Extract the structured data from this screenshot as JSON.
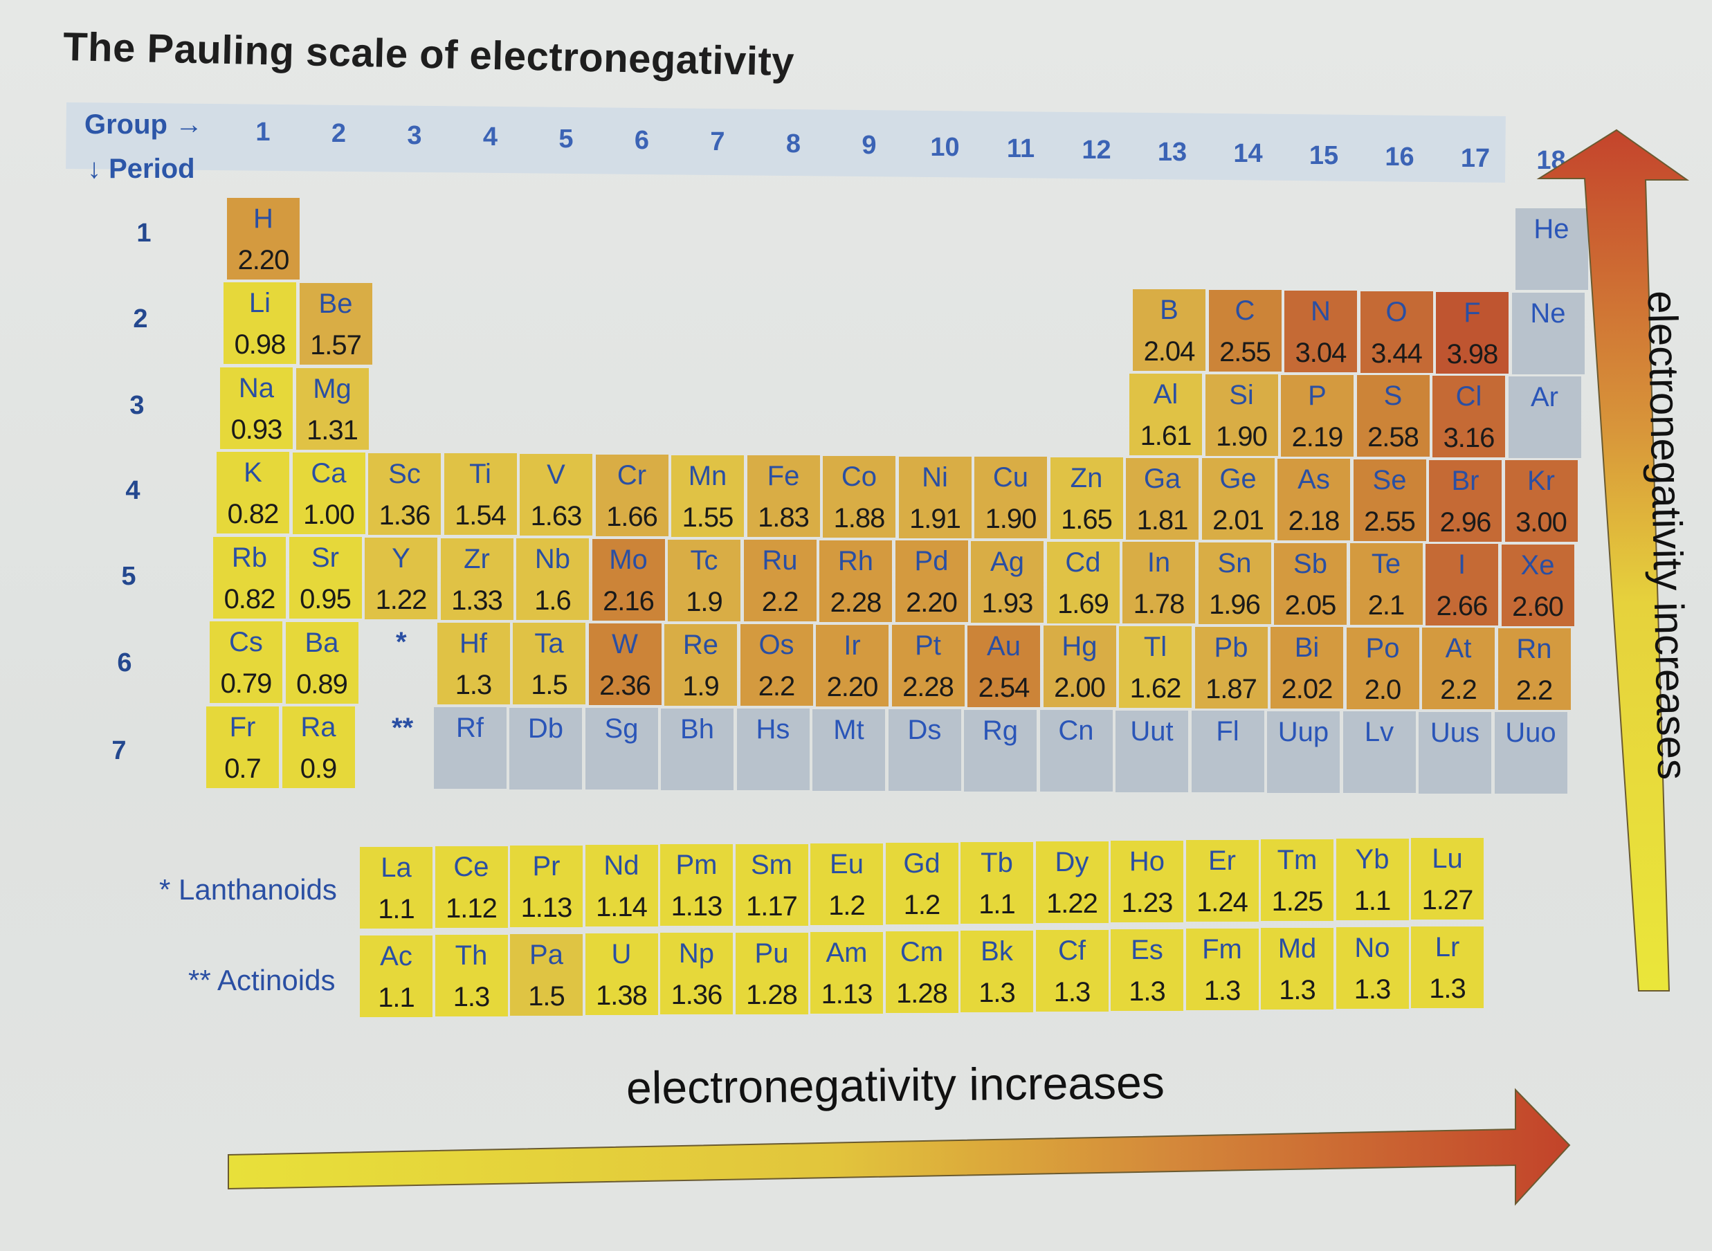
{
  "title": "The Pauling scale of electronegativity",
  "header": {
    "group_label": "Group →",
    "period_label": "↓ Period",
    "groups": [
      "1",
      "2",
      "3",
      "4",
      "5",
      "6",
      "7",
      "8",
      "9",
      "10",
      "11",
      "12",
      "13",
      "14",
      "15",
      "16",
      "17",
      "18"
    ],
    "periods": [
      "1",
      "2",
      "3",
      "4",
      "5",
      "6",
      "7"
    ]
  },
  "markers": {
    "lanthanoid": "*",
    "actinoid": "**"
  },
  "series_labels": {
    "lanthanoids": "* Lanthanoids",
    "actinoids": "** Actinoids"
  },
  "arrows": {
    "horizontal_label": "electronegativity increases",
    "vertical_label": "electronegativity increases"
  },
  "colors": {
    "yellow": "#e6d83a",
    "light_gold": "#e0c245",
    "gold": "#d9ad45",
    "amber": "#d49a3f",
    "orange": "#cc8438",
    "rust": "#c56a35",
    "red": "#bf5530",
    "gray": "#b8c2cc",
    "symbol_text": "#2a4fa3",
    "value_text": "#1a1a1a",
    "header_text": "#2c56a8"
  },
  "elements": [
    {
      "sym": "H",
      "en": "2.20",
      "p": 1,
      "g": 1,
      "c": "amber"
    },
    {
      "sym": "He",
      "en": "",
      "p": 1,
      "g": 18,
      "c": "gray"
    },
    {
      "sym": "Li",
      "en": "0.98",
      "p": 2,
      "g": 1,
      "c": "yellow"
    },
    {
      "sym": "Be",
      "en": "1.57",
      "p": 2,
      "g": 2,
      "c": "gold"
    },
    {
      "sym": "B",
      "en": "2.04",
      "p": 2,
      "g": 13,
      "c": "gold"
    },
    {
      "sym": "C",
      "en": "2.55",
      "p": 2,
      "g": 14,
      "c": "orange"
    },
    {
      "sym": "N",
      "en": "3.04",
      "p": 2,
      "g": 15,
      "c": "rust"
    },
    {
      "sym": "O",
      "en": "3.44",
      "p": 2,
      "g": 16,
      "c": "rust"
    },
    {
      "sym": "F",
      "en": "3.98",
      "p": 2,
      "g": 17,
      "c": "red"
    },
    {
      "sym": "Ne",
      "en": "",
      "p": 2,
      "g": 18,
      "c": "gray"
    },
    {
      "sym": "Na",
      "en": "0.93",
      "p": 3,
      "g": 1,
      "c": "yellow"
    },
    {
      "sym": "Mg",
      "en": "1.31",
      "p": 3,
      "g": 2,
      "c": "light_gold"
    },
    {
      "sym": "Al",
      "en": "1.61",
      "p": 3,
      "g": 13,
      "c": "light_gold"
    },
    {
      "sym": "Si",
      "en": "1.90",
      "p": 3,
      "g": 14,
      "c": "gold"
    },
    {
      "sym": "P",
      "en": "2.19",
      "p": 3,
      "g": 15,
      "c": "amber"
    },
    {
      "sym": "S",
      "en": "2.58",
      "p": 3,
      "g": 16,
      "c": "orange"
    },
    {
      "sym": "Cl",
      "en": "3.16",
      "p": 3,
      "g": 17,
      "c": "rust"
    },
    {
      "sym": "Ar",
      "en": "",
      "p": 3,
      "g": 18,
      "c": "gray"
    },
    {
      "sym": "K",
      "en": "0.82",
      "p": 4,
      "g": 1,
      "c": "yellow"
    },
    {
      "sym": "Ca",
      "en": "1.00",
      "p": 4,
      "g": 2,
      "c": "yellow"
    },
    {
      "sym": "Sc",
      "en": "1.36",
      "p": 4,
      "g": 3,
      "c": "light_gold"
    },
    {
      "sym": "Ti",
      "en": "1.54",
      "p": 4,
      "g": 4,
      "c": "light_gold"
    },
    {
      "sym": "V",
      "en": "1.63",
      "p": 4,
      "g": 5,
      "c": "light_gold"
    },
    {
      "sym": "Cr",
      "en": "1.66",
      "p": 4,
      "g": 6,
      "c": "gold"
    },
    {
      "sym": "Mn",
      "en": "1.55",
      "p": 4,
      "g": 7,
      "c": "light_gold"
    },
    {
      "sym": "Fe",
      "en": "1.83",
      "p": 4,
      "g": 8,
      "c": "gold"
    },
    {
      "sym": "Co",
      "en": "1.88",
      "p": 4,
      "g": 9,
      "c": "gold"
    },
    {
      "sym": "Ni",
      "en": "1.91",
      "p": 4,
      "g": 10,
      "c": "gold"
    },
    {
      "sym": "Cu",
      "en": "1.90",
      "p": 4,
      "g": 11,
      "c": "gold"
    },
    {
      "sym": "Zn",
      "en": "1.65",
      "p": 4,
      "g": 12,
      "c": "light_gold"
    },
    {
      "sym": "Ga",
      "en": "1.81",
      "p": 4,
      "g": 13,
      "c": "gold"
    },
    {
      "sym": "Ge",
      "en": "2.01",
      "p": 4,
      "g": 14,
      "c": "gold"
    },
    {
      "sym": "As",
      "en": "2.18",
      "p": 4,
      "g": 15,
      "c": "amber"
    },
    {
      "sym": "Se",
      "en": "2.55",
      "p": 4,
      "g": 16,
      "c": "orange"
    },
    {
      "sym": "Br",
      "en": "2.96",
      "p": 4,
      "g": 17,
      "c": "rust"
    },
    {
      "sym": "Kr",
      "en": "3.00",
      "p": 4,
      "g": 18,
      "c": "rust"
    },
    {
      "sym": "Rb",
      "en": "0.82",
      "p": 5,
      "g": 1,
      "c": "yellow"
    },
    {
      "sym": "Sr",
      "en": "0.95",
      "p": 5,
      "g": 2,
      "c": "yellow"
    },
    {
      "sym": "Y",
      "en": "1.22",
      "p": 5,
      "g": 3,
      "c": "light_gold"
    },
    {
      "sym": "Zr",
      "en": "1.33",
      "p": 5,
      "g": 4,
      "c": "light_gold"
    },
    {
      "sym": "Nb",
      "en": "1.6",
      "p": 5,
      "g": 5,
      "c": "light_gold"
    },
    {
      "sym": "Mo",
      "en": "2.16",
      "p": 5,
      "g": 6,
      "c": "orange"
    },
    {
      "sym": "Tc",
      "en": "1.9",
      "p": 5,
      "g": 7,
      "c": "gold"
    },
    {
      "sym": "Ru",
      "en": "2.2",
      "p": 5,
      "g": 8,
      "c": "amber"
    },
    {
      "sym": "Rh",
      "en": "2.28",
      "p": 5,
      "g": 9,
      "c": "amber"
    },
    {
      "sym": "Pd",
      "en": "2.20",
      "p": 5,
      "g": 10,
      "c": "amber"
    },
    {
      "sym": "Ag",
      "en": "1.93",
      "p": 5,
      "g": 11,
      "c": "gold"
    },
    {
      "sym": "Cd",
      "en": "1.69",
      "p": 5,
      "g": 12,
      "c": "light_gold"
    },
    {
      "sym": "In",
      "en": "1.78",
      "p": 5,
      "g": 13,
      "c": "gold"
    },
    {
      "sym": "Sn",
      "en": "1.96",
      "p": 5,
      "g": 14,
      "c": "gold"
    },
    {
      "sym": "Sb",
      "en": "2.05",
      "p": 5,
      "g": 15,
      "c": "amber"
    },
    {
      "sym": "Te",
      "en": "2.1",
      "p": 5,
      "g": 16,
      "c": "amber"
    },
    {
      "sym": "I",
      "en": "2.66",
      "p": 5,
      "g": 17,
      "c": "rust"
    },
    {
      "sym": "Xe",
      "en": "2.60",
      "p": 5,
      "g": 18,
      "c": "rust"
    },
    {
      "sym": "Cs",
      "en": "0.79",
      "p": 6,
      "g": 1,
      "c": "yellow"
    },
    {
      "sym": "Ba",
      "en": "0.89",
      "p": 6,
      "g": 2,
      "c": "yellow"
    },
    {
      "sym": "Hf",
      "en": "1.3",
      "p": 6,
      "g": 4,
      "c": "light_gold"
    },
    {
      "sym": "Ta",
      "en": "1.5",
      "p": 6,
      "g": 5,
      "c": "light_gold"
    },
    {
      "sym": "W",
      "en": "2.36",
      "p": 6,
      "g": 6,
      "c": "orange"
    },
    {
      "sym": "Re",
      "en": "1.9",
      "p": 6,
      "g": 7,
      "c": "gold"
    },
    {
      "sym": "Os",
      "en": "2.2",
      "p": 6,
      "g": 8,
      "c": "amber"
    },
    {
      "sym": "Ir",
      "en": "2.20",
      "p": 6,
      "g": 9,
      "c": "amber"
    },
    {
      "sym": "Pt",
      "en": "2.28",
      "p": 6,
      "g": 10,
      "c": "amber"
    },
    {
      "sym": "Au",
      "en": "2.54",
      "p": 6,
      "g": 11,
      "c": "orange"
    },
    {
      "sym": "Hg",
      "en": "2.00",
      "p": 6,
      "g": 12,
      "c": "gold"
    },
    {
      "sym": "Tl",
      "en": "1.62",
      "p": 6,
      "g": 13,
      "c": "light_gold"
    },
    {
      "sym": "Pb",
      "en": "1.87",
      "p": 6,
      "g": 14,
      "c": "gold"
    },
    {
      "sym": "Bi",
      "en": "2.02",
      "p": 6,
      "g": 15,
      "c": "amber"
    },
    {
      "sym": "Po",
      "en": "2.0",
      "p": 6,
      "g": 16,
      "c": "amber"
    },
    {
      "sym": "At",
      "en": "2.2",
      "p": 6,
      "g": 17,
      "c": "amber"
    },
    {
      "sym": "Rn",
      "en": "2.2",
      "p": 6,
      "g": 18,
      "c": "amber"
    },
    {
      "sym": "Fr",
      "en": "0.7",
      "p": 7,
      "g": 1,
      "c": "yellow"
    },
    {
      "sym": "Ra",
      "en": "0.9",
      "p": 7,
      "g": 2,
      "c": "yellow"
    },
    {
      "sym": "Rf",
      "en": "",
      "p": 7,
      "g": 4,
      "c": "gray"
    },
    {
      "sym": "Db",
      "en": "",
      "p": 7,
      "g": 5,
      "c": "gray"
    },
    {
      "sym": "Sg",
      "en": "",
      "p": 7,
      "g": 6,
      "c": "gray"
    },
    {
      "sym": "Bh",
      "en": "",
      "p": 7,
      "g": 7,
      "c": "gray"
    },
    {
      "sym": "Hs",
      "en": "",
      "p": 7,
      "g": 8,
      "c": "gray"
    },
    {
      "sym": "Mt",
      "en": "",
      "p": 7,
      "g": 9,
      "c": "gray"
    },
    {
      "sym": "Ds",
      "en": "",
      "p": 7,
      "g": 10,
      "c": "gray"
    },
    {
      "sym": "Rg",
      "en": "",
      "p": 7,
      "g": 11,
      "c": "gray"
    },
    {
      "sym": "Cn",
      "en": "",
      "p": 7,
      "g": 12,
      "c": "gray"
    },
    {
      "sym": "Uut",
      "en": "",
      "p": 7,
      "g": 13,
      "c": "gray"
    },
    {
      "sym": "Fl",
      "en": "",
      "p": 7,
      "g": 14,
      "c": "gray"
    },
    {
      "sym": "Uup",
      "en": "",
      "p": 7,
      "g": 15,
      "c": "gray"
    },
    {
      "sym": "Lv",
      "en": "",
      "p": 7,
      "g": 16,
      "c": "gray"
    },
    {
      "sym": "Uus",
      "en": "",
      "p": 7,
      "g": 17,
      "c": "gray"
    },
    {
      "sym": "Uuo",
      "en": "",
      "p": 7,
      "g": 18,
      "c": "gray"
    }
  ],
  "lanthanoids": [
    {
      "sym": "La",
      "en": "1.1"
    },
    {
      "sym": "Ce",
      "en": "1.12"
    },
    {
      "sym": "Pr",
      "en": "1.13"
    },
    {
      "sym": "Nd",
      "en": "1.14"
    },
    {
      "sym": "Pm",
      "en": "1.13"
    },
    {
      "sym": "Sm",
      "en": "1.17"
    },
    {
      "sym": "Eu",
      "en": "1.2"
    },
    {
      "sym": "Gd",
      "en": "1.2"
    },
    {
      "sym": "Tb",
      "en": "1.1"
    },
    {
      "sym": "Dy",
      "en": "1.22"
    },
    {
      "sym": "Ho",
      "en": "1.23"
    },
    {
      "sym": "Er",
      "en": "1.24"
    },
    {
      "sym": "Tm",
      "en": "1.25"
    },
    {
      "sym": "Yb",
      "en": "1.1"
    },
    {
      "sym": "Lu",
      "en": "1.27"
    }
  ],
  "actinoids": [
    {
      "sym": "Ac",
      "en": "1.1"
    },
    {
      "sym": "Th",
      "en": "1.3"
    },
    {
      "sym": "Pa",
      "en": "1.5"
    },
    {
      "sym": "U",
      "en": "1.38"
    },
    {
      "sym": "Np",
      "en": "1.36"
    },
    {
      "sym": "Pu",
      "en": "1.28"
    },
    {
      "sym": "Am",
      "en": "1.13"
    },
    {
      "sym": "Cm",
      "en": "1.28"
    },
    {
      "sym": "Bk",
      "en": "1.3"
    },
    {
      "sym": "Cf",
      "en": "1.3"
    },
    {
      "sym": "Es",
      "en": "1.3"
    },
    {
      "sym": "Fm",
      "en": "1.3"
    },
    {
      "sym": "Md",
      "en": "1.3"
    },
    {
      "sym": "No",
      "en": "1.3"
    },
    {
      "sym": "Lr",
      "en": "1.3"
    }
  ],
  "chart_data": {
    "type": "heatmap",
    "title": "The Pauling scale of electronegativity",
    "xlabel": "Group",
    "ylabel": "Period",
    "x": [
      1,
      2,
      3,
      4,
      5,
      6,
      7,
      8,
      9,
      10,
      11,
      12,
      13,
      14,
      15,
      16,
      17,
      18
    ],
    "y": [
      1,
      2,
      3,
      4,
      5,
      6,
      7
    ],
    "color_scale": "yellow (low) to red (high); gray = no value",
    "annotations": [
      "electronegativity increases (left → right)",
      "electronegativity increases (bottom → top)"
    ],
    "values": {
      "H": 2.2,
      "Li": 0.98,
      "Be": 1.57,
      "B": 2.04,
      "C": 2.55,
      "N": 3.04,
      "O": 3.44,
      "F": 3.98,
      "Na": 0.93,
      "Mg": 1.31,
      "Al": 1.61,
      "Si": 1.9,
      "P": 2.19,
      "S": 2.58,
      "Cl": 3.16,
      "K": 0.82,
      "Ca": 1.0,
      "Sc": 1.36,
      "Ti": 1.54,
      "V": 1.63,
      "Cr": 1.66,
      "Mn": 1.55,
      "Fe": 1.83,
      "Co": 1.88,
      "Ni": 1.91,
      "Cu": 1.9,
      "Zn": 1.65,
      "Ga": 1.81,
      "Ge": 2.01,
      "As": 2.18,
      "Se": 2.55,
      "Br": 2.96,
      "Kr": 3.0,
      "Rb": 0.82,
      "Sr": 0.95,
      "Y": 1.22,
      "Zr": 1.33,
      "Nb": 1.6,
      "Mo": 2.16,
      "Tc": 1.9,
      "Ru": 2.2,
      "Rh": 2.28,
      "Pd": 2.2,
      "Ag": 1.93,
      "Cd": 1.69,
      "In": 1.78,
      "Sn": 1.96,
      "Sb": 2.05,
      "Te": 2.1,
      "I": 2.66,
      "Xe": 2.6,
      "Cs": 0.79,
      "Ba": 0.89,
      "Hf": 1.3,
      "Ta": 1.5,
      "W": 2.36,
      "Re": 1.9,
      "Os": 2.2,
      "Ir": 2.2,
      "Pt": 2.28,
      "Au": 2.54,
      "Hg": 2.0,
      "Tl": 1.62,
      "Pb": 1.87,
      "Bi": 2.02,
      "Po": 2.0,
      "At": 2.2,
      "Rn": 2.2,
      "Fr": 0.7,
      "Ra": 0.9,
      "La": 1.1,
      "Ce": 1.12,
      "Pr": 1.13,
      "Nd": 1.14,
      "Pm": 1.13,
      "Sm": 1.17,
      "Eu": 1.2,
      "Gd": 1.2,
      "Tb": 1.1,
      "Dy": 1.22,
      "Ho": 1.23,
      "Er": 1.24,
      "Tm": 1.25,
      "Yb": 1.1,
      "Lu": 1.27,
      "Ac": 1.1,
      "Th": 1.3,
      "Pa": 1.5,
      "U": 1.38,
      "Np": 1.36,
      "Pu": 1.28,
      "Am": 1.13,
      "Cm": 1.28,
      "Bk": 1.3,
      "Cf": 1.3,
      "Es": 1.3,
      "Fm": 1.3,
      "Md": 1.3,
      "No": 1.3,
      "Lr": 1.3
    },
    "no_value": [
      "He",
      "Ne",
      "Ar",
      "Rf",
      "Db",
      "Sg",
      "Bh",
      "Hs",
      "Mt",
      "Ds",
      "Rg",
      "Cn",
      "Uut",
      "Fl",
      "Uup",
      "Lv",
      "Uus",
      "Uuo"
    ]
  }
}
